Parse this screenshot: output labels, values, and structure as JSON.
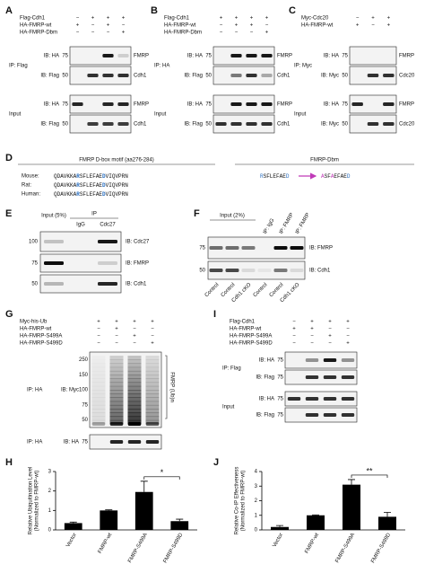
{
  "panel_a": {
    "letter": "A",
    "treatments": [
      {
        "name": "Flag-Cdh1",
        "signs": [
          "−",
          "+",
          "+",
          "+"
        ]
      },
      {
        "name": "HA-FMRP-wt",
        "signs": [
          "+",
          "−",
          "+",
          "−"
        ]
      },
      {
        "name": "HA-FMRP-Dbm",
        "signs": [
          "−",
          "−",
          "−",
          "+"
        ]
      }
    ],
    "groups": [
      {
        "label": "IP: Flag",
        "blots": [
          {
            "ib": "IB: HA",
            "mw": [
              "75"
            ],
            "protein": "FMRP"
          },
          {
            "ib": "IB: Flag",
            "mw": [
              "50"
            ],
            "protein": "Cdh1"
          }
        ]
      },
      {
        "label": "Input",
        "blots": [
          {
            "ib": "IB: HA",
            "mw": [
              "75"
            ],
            "protein": "FMRP"
          },
          {
            "ib": "IB: Flag",
            "mw": [
              "50"
            ],
            "protein": "Cdh1"
          }
        ]
      }
    ]
  },
  "panel_b": {
    "letter": "B",
    "treatments": [
      {
        "name": "Flag-Cdh1",
        "signs": [
          "+",
          "+",
          "+",
          "+"
        ]
      },
      {
        "name": "HA-FMRP-wt",
        "signs": [
          "−",
          "+",
          "+",
          "−"
        ]
      },
      {
        "name": "HA-FMRP-Dbm",
        "signs": [
          "−",
          "−",
          "−",
          "+"
        ]
      }
    ],
    "groups": [
      {
        "label": "IP: HA",
        "blots": [
          {
            "ib": "IB: HA",
            "mw": [
              "75"
            ],
            "protein": "FMRP"
          },
          {
            "ib": "IB: Flag",
            "mw": [
              "50"
            ],
            "protein": "Cdh1"
          }
        ]
      },
      {
        "label": "Input",
        "blots": [
          {
            "ib": "IB: HA",
            "mw": [
              "75"
            ],
            "protein": "FMRP"
          },
          {
            "ib": "IB: Flag",
            "mw": [
              "50"
            ],
            "protein": "Cdh1"
          }
        ]
      }
    ]
  },
  "panel_c": {
    "letter": "C",
    "treatments": [
      {
        "name": "Myc-Cdc20",
        "signs": [
          "−",
          "+",
          "+"
        ]
      },
      {
        "name": "HA-FMRP-wt",
        "signs": [
          "+",
          "−",
          "+"
        ]
      }
    ],
    "groups": [
      {
        "label": "IP: Myc",
        "blots": [
          {
            "ib": "IB: HA",
            "mw": [
              "75"
            ],
            "protein": "FMRP"
          },
          {
            "ib": "IB: Myc",
            "mw": [
              "50"
            ],
            "protein": "Cdc20"
          }
        ]
      },
      {
        "label": "Input",
        "blots": [
          {
            "ib": "IB: HA",
            "mw": [
              "75"
            ],
            "protein": "FMRP"
          },
          {
            "ib": "IB: Myc",
            "mw": [
              "50"
            ],
            "protein": "Cdc20"
          }
        ]
      }
    ]
  },
  "panel_d": {
    "letter": "D",
    "motif_title": "FMRP D-box motif (aa276-284)",
    "mutant_title": "FMRP-Dbm",
    "species": [
      {
        "name": "Mouse:",
        "sequence": [
          "QDAVKKA",
          "R",
          "SFLEFAE",
          "D",
          "VIQVPRN"
        ]
      },
      {
        "name": "Rat:",
        "sequence": [
          "QDAVKKA",
          "R",
          "SFLEFAE",
          "D",
          "VIQVPRN"
        ]
      },
      {
        "name": "Human:",
        "sequence": [
          "QDAVKKA",
          "R",
          "SFLEFAE",
          "D",
          "VIQVPRN"
        ]
      }
    ],
    "wild_type": [
      "R",
      "SFLEFAE",
      "D"
    ],
    "mutant": [
      "A",
      "SF",
      "A",
      "EFAE",
      "D"
    ]
  },
  "panel_e": {
    "letter": "E",
    "input": "Input (5%)",
    "ip": "IP",
    "lanes": [
      "IgG",
      "Cdc27"
    ],
    "blots": [
      {
        "ib": "IB: Cdc27",
        "mw": "100"
      },
      {
        "ib": "IB: FMRP",
        "mw": "75"
      },
      {
        "ib": "IB: Cdh1",
        "mw": "50"
      }
    ]
  },
  "panel_f": {
    "letter": "F",
    "input": "Input (2%)",
    "ip_lanes": [
      "IP: IgG",
      "IP: FMRP",
      "IP: FMRP"
    ],
    "blots": [
      {
        "ib": "IB: FMRP",
        "mw": "75"
      },
      {
        "ib": "IB: Cdh1",
        "mw": "50"
      }
    ],
    "genotypes": [
      "Control",
      "Control",
      "Cdh1 cKO",
      "Control",
      "Control",
      "Cdh1 cKO"
    ]
  },
  "panel_g": {
    "letter": "G",
    "treatments": [
      {
        "name": "Myc-his-Ub",
        "signs": [
          "+",
          "+",
          "+",
          "+"
        ]
      },
      {
        "name": "HA-FMRP-wt",
        "signs": [
          "−",
          "+",
          "−",
          "−"
        ]
      },
      {
        "name": "HA-FMRP-S499A",
        "signs": [
          "−",
          "−",
          "+",
          "−"
        ]
      },
      {
        "name": "HA-FMRP-S499D",
        "signs": [
          "−",
          "−",
          "−",
          "+"
        ]
      }
    ],
    "groups": [
      {
        "label": "IP: HA",
        "blots": [
          {
            "ib": "IB: Myc",
            "mw": [
              "250",
              "150",
              "100",
              "75",
              "50"
            ],
            "protein": "FMRP (Ub)n"
          }
        ]
      },
      {
        "label": "IP: HA",
        "blots": [
          {
            "ib": "IB: HA",
            "mw": [
              "75"
            ]
          }
        ]
      }
    ]
  },
  "panel_i": {
    "letter": "I",
    "treatments": [
      {
        "name": "Flag-Cdh1",
        "signs": [
          "−",
          "+",
          "+",
          "+"
        ]
      },
      {
        "name": "HA-FMRP-wt",
        "signs": [
          "+",
          "+",
          "−",
          "−"
        ]
      },
      {
        "name": "HA-FMRP-S499A",
        "signs": [
          "−",
          "−",
          "+",
          "−"
        ]
      },
      {
        "name": "HA-FMRP-S499D",
        "signs": [
          "−",
          "−",
          "−",
          "+"
        ]
      }
    ],
    "groups": [
      {
        "label": "IP: Flag",
        "blots": [
          {
            "ib": "IB: HA",
            "mw": [
              "75"
            ]
          },
          {
            "ib": "IB: Flag",
            "mw": [
              "75"
            ]
          }
        ]
      },
      {
        "label": "Input",
        "blots": [
          {
            "ib": "IB: HA",
            "mw": [
              "75"
            ]
          },
          {
            "ib": "IB: Flag",
            "mw": [
              "75"
            ]
          }
        ]
      }
    ]
  },
  "chart_data": [
    {
      "type": "bar",
      "panel_label": "H",
      "ylabel": [
        "Relative Ubiquitination Level",
        "(Normalized to FMRP-wt)"
      ],
      "categories": [
        "Vector",
        "FMRP-wt",
        "FMRP-S499A",
        "FMRP-S499D"
      ],
      "values": [
        0.35,
        1,
        1.95,
        0.45
      ],
      "errors": [
        0.05,
        0.03,
        0.55,
        0.1
      ],
      "color": "#000000",
      "ylim": [
        0,
        3
      ],
      "yticks": [
        0,
        1,
        2,
        3
      ],
      "annotation": "*"
    },
    {
      "type": "bar",
      "panel_label": "J",
      "ylabel": [
        "Relative Co-IP Effectiveness",
        "(Normalized to FMRP-wt)"
      ],
      "categories": [
        "Vector",
        "FMRP-wt",
        "FMRP-S499A",
        "FMRP-S499D"
      ],
      "values": [
        0.2,
        1,
        3.1,
        0.9
      ],
      "errors": [
        0.1,
        0.03,
        0.35,
        0.3
      ],
      "color": "#000000",
      "ylim": [
        0,
        4
      ],
      "yticks": [
        0,
        1,
        2,
        3,
        4
      ],
      "annotation": "**"
    }
  ]
}
